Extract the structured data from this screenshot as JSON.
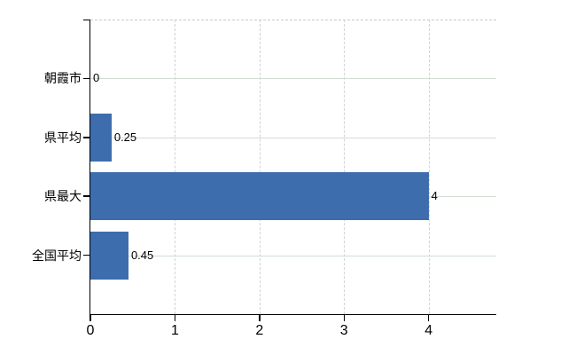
{
  "chart_data": {
    "type": "bar",
    "orientation": "horizontal",
    "title": "",
    "xlabel": "",
    "ylabel": "",
    "categories": [
      "朝霞市",
      "県平均",
      "県最大",
      "全国平均"
    ],
    "values": [
      0,
      0.25,
      4,
      0.45
    ],
    "value_labels": [
      "0",
      "0.25",
      "4",
      "0.45"
    ],
    "x_ticks": [
      0,
      1,
      2,
      3,
      4
    ],
    "x_tick_labels": [
      "0",
      "1",
      "2",
      "3",
      "4"
    ],
    "xlim": [
      0,
      4.8
    ],
    "legend": "none",
    "grid": {
      "vertical_style": "dashed",
      "horizontal_style": "solid",
      "top_border_style": "dashed"
    },
    "colors": {
      "bar": "#3d6dac",
      "axis": "#000000",
      "vertical_grid": "#d1d1d7",
      "horizontal_grid": "#d3ddd3",
      "top_border": "#c9c9c9",
      "text": "#000000",
      "background": "#ffffff"
    }
  }
}
